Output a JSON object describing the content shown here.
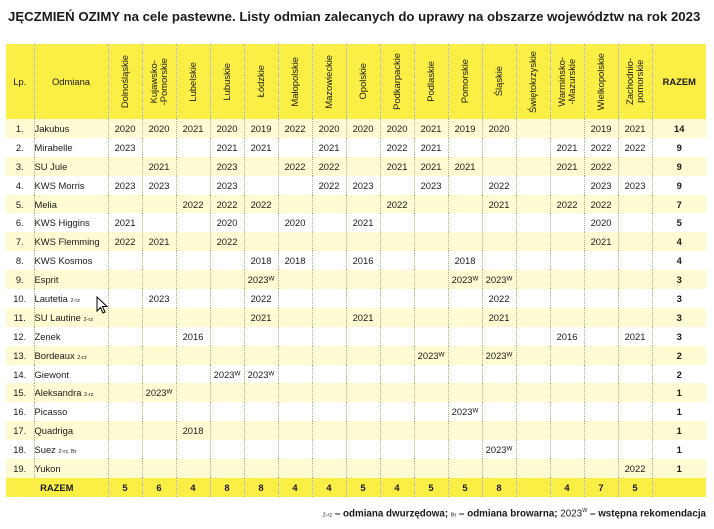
{
  "title": "JĘCZMIEŃ OZIMY na cele pastewne. Listy odmian zalecanych do uprawy na obszarze województw na rok 2023",
  "header": {
    "lp": "Lp.",
    "odmiana": "Odmiana",
    "regions": [
      "Dolnośląskie",
      "Kujawsko-\n-Pomorskie",
      "Lubelskie",
      "Lubuskie",
      "Łódzkie",
      "Małopolskie",
      "Mazowieckie",
      "Opolskie",
      "Podkarpackie",
      "Podlaskie",
      "Pomorskie",
      "Śląskie",
      "Świętokrzyskie",
      "Warmińsko-\n-Mazurskie",
      "Wielkopolskie",
      "Zachodnio-\npomorskie"
    ],
    "razem": "RAZEM"
  },
  "rows": [
    {
      "lp": "1.",
      "name": "Jakubus",
      "note": "",
      "years": [
        "2020",
        "2020",
        "2021",
        "2020",
        "2019",
        "2022",
        "2020",
        "2020",
        "2020",
        "2021",
        "2019",
        "2020",
        "",
        "",
        "2019",
        "2021"
      ],
      "razem": "14"
    },
    {
      "lp": "2.",
      "name": "Mirabelle",
      "note": "",
      "years": [
        "2023",
        "",
        "",
        "2021",
        "2021",
        "",
        "2021",
        "",
        "2022",
        "2021",
        "",
        "",
        "",
        "2021",
        "2022",
        "2022"
      ],
      "razem": "9"
    },
    {
      "lp": "3.",
      "name": "SU Jule",
      "note": "",
      "years": [
        "",
        "2021",
        "",
        "2023",
        "",
        "2022",
        "2022",
        "",
        "2021",
        "2021",
        "2021",
        "",
        "",
        "2021",
        "2022",
        ""
      ],
      "razem": "9"
    },
    {
      "lp": "4.",
      "name": "KWS Morris",
      "note": "",
      "years": [
        "2023",
        "2023",
        "",
        "2023",
        "",
        "",
        "2022",
        "2023",
        "",
        "2023",
        "",
        "2022",
        "",
        "",
        "2023",
        "2023"
      ],
      "razem": "9"
    },
    {
      "lp": "5.",
      "name": "Melia",
      "note": "",
      "years": [
        "",
        "",
        "2022",
        "2022",
        "2022",
        "",
        "",
        "",
        "2022",
        "",
        "",
        "2021",
        "",
        "2022",
        "2022",
        ""
      ],
      "razem": "7"
    },
    {
      "lp": "6.",
      "name": "KWS Higgins",
      "note": "",
      "years": [
        "2021",
        "",
        "",
        "2020",
        "",
        "2020",
        "",
        "2021",
        "",
        "",
        "",
        "",
        "",
        "",
        "2020",
        ""
      ],
      "razem": "5"
    },
    {
      "lp": "7.",
      "name": "KWS Flemming",
      "note": "",
      "years": [
        "2022",
        "2021",
        "",
        "2022",
        "",
        "",
        "",
        "",
        "",
        "",
        "",
        "",
        "",
        "",
        "2021",
        ""
      ],
      "razem": "4"
    },
    {
      "lp": "8.",
      "name": "KWS Kosmos",
      "note": "",
      "years": [
        "",
        "",
        "",
        "",
        "2018",
        "2018",
        "",
        "2016",
        "",
        "",
        "2018",
        "",
        "",
        "",
        "",
        ""
      ],
      "razem": "4"
    },
    {
      "lp": "9.",
      "name": "Esprit",
      "note": "",
      "years": [
        "",
        "",
        "",
        "",
        "2023ᵂ",
        "",
        "",
        "",
        "",
        "",
        "2023ᵂ",
        "2023ᵂ",
        "",
        "",
        "",
        ""
      ],
      "razem": "3"
    },
    {
      "lp": "10.",
      "name": "Lautetia",
      "note": "2-rz",
      "years": [
        "",
        "2023",
        "",
        "",
        "2022",
        "",
        "",
        "",
        "",
        "",
        "",
        "2022",
        "",
        "",
        "",
        ""
      ],
      "razem": "3"
    },
    {
      "lp": "11.",
      "name": "SU Lautine",
      "note": "2-rz",
      "years": [
        "",
        "",
        "",
        "",
        "2021",
        "",
        "",
        "2021",
        "",
        "",
        "",
        "2021",
        "",
        "",
        "",
        ""
      ],
      "razem": "3"
    },
    {
      "lp": "12.",
      "name": "Zenek",
      "note": "",
      "years": [
        "",
        "",
        "2016",
        "",
        "",
        "",
        "",
        "",
        "",
        "",
        "",
        "",
        "",
        "2016",
        "",
        "2021"
      ],
      "razem": "3"
    },
    {
      "lp": "13.",
      "name": "Bordeaux",
      "note": "2-rz",
      "years": [
        "",
        "",
        "",
        "",
        "",
        "",
        "",
        "",
        "",
        "2023ᵂ",
        "",
        "2023ᵂ",
        "",
        "",
        "",
        ""
      ],
      "razem": "2"
    },
    {
      "lp": "14.",
      "name": "Giewont",
      "note": "",
      "years": [
        "",
        "",
        "",
        "2023ᵂ",
        "2023ᵂ",
        "",
        "",
        "",
        "",
        "",
        "",
        "",
        "",
        "",
        "",
        ""
      ],
      "razem": "2"
    },
    {
      "lp": "15.",
      "name": "Aleksandra",
      "note": "2-rz",
      "years": [
        "",
        "2023ᵂ",
        "",
        "",
        "",
        "",
        "",
        "",
        "",
        "",
        "",
        "",
        "",
        "",
        "",
        ""
      ],
      "razem": "1"
    },
    {
      "lp": "16.",
      "name": "Picasso",
      "note": "",
      "years": [
        "",
        "",
        "",
        "",
        "",
        "",
        "",
        "",
        "",
        "",
        "2023ᵂ",
        "",
        "",
        "",
        "",
        ""
      ],
      "razem": "1"
    },
    {
      "lp": "17.",
      "name": "Quadriga",
      "note": "",
      "years": [
        "",
        "",
        "2018",
        "",
        "",
        "",
        "",
        "",
        "",
        "",
        "",
        "",
        "",
        "",
        "",
        ""
      ],
      "razem": "1"
    },
    {
      "lp": "18.",
      "name": "Suez",
      "note": "2-rz, Br",
      "years": [
        "",
        "",
        "",
        "",
        "",
        "",
        "",
        "",
        "",
        "",
        "",
        "2023ᵂ",
        "",
        "",
        "",
        ""
      ],
      "razem": "1"
    },
    {
      "lp": "19.",
      "name": "Yukon",
      "note": "",
      "years": [
        "",
        "",
        "",
        "",
        "",
        "",
        "",
        "",
        "",
        "",
        "",
        "",
        "",
        "",
        "",
        "2022"
      ],
      "razem": "1"
    }
  ],
  "footer": {
    "label": "RAZEM",
    "totals": [
      "5",
      "6",
      "4",
      "8",
      "8",
      "4",
      "4",
      "5",
      "4",
      "5",
      "5",
      "8",
      "",
      "4",
      "7",
      "5"
    ]
  },
  "legend": {
    "sym1": "2-rz",
    "text1": " – odmiana dwurzędowa; ",
    "sym2": "Br",
    "text2": " – odmiana browarna; ",
    "sym3": "2023",
    "sym3sup": "W",
    "text3": " – wstępna rekomendacja"
  }
}
